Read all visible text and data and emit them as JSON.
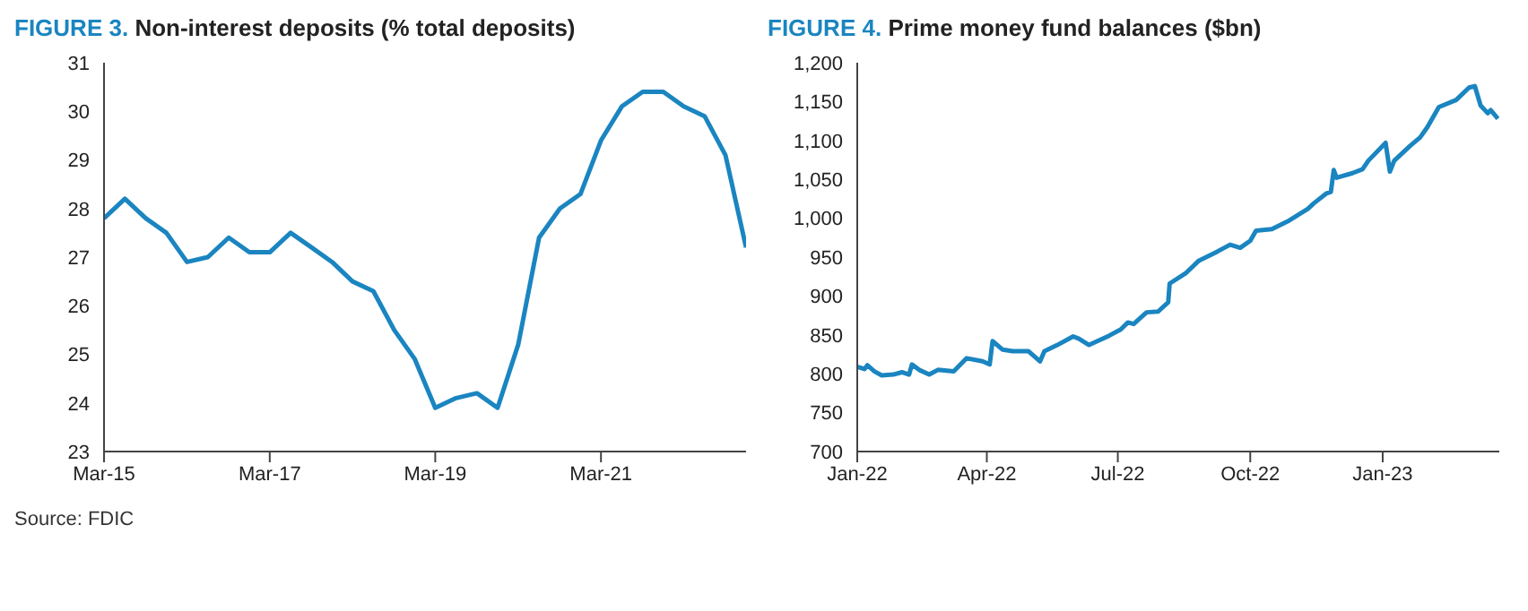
{
  "chart_data": [
    {
      "type": "line",
      "title": "FIGURE 3. Non-interest deposits (% total deposits)",
      "annotations": [
        "Source: FDIC"
      ],
      "x": [
        "2015-03",
        "2015-06",
        "2015-09",
        "2015-12",
        "2016-03",
        "2016-06",
        "2016-09",
        "2016-12",
        "2017-03",
        "2017-06",
        "2017-09",
        "2017-12",
        "2018-03",
        "2018-06",
        "2018-09",
        "2018-12",
        "2019-03",
        "2019-06",
        "2019-09",
        "2019-12",
        "2020-03",
        "2020-06",
        "2020-09",
        "2020-12",
        "2021-03",
        "2021-06",
        "2021-09",
        "2021-12",
        "2022-03",
        "2022-06",
        "2022-09",
        "2022-12"
      ],
      "series": [
        {
          "color": "#1a85c0",
          "values": [
            27.8,
            28.2,
            27.8,
            27.5,
            26.9,
            27.0,
            27.4,
            27.1,
            27.1,
            27.5,
            27.2,
            26.9,
            26.5,
            26.3,
            25.5,
            24.9,
            23.9,
            24.1,
            24.2,
            23.9,
            25.2,
            27.4,
            28.0,
            28.3,
            29.4,
            30.1,
            30.4,
            30.4,
            30.1,
            29.9,
            29.1,
            27.2
          ]
        }
      ],
      "xlim": [
        "2015-03",
        "2022-12"
      ],
      "xticks": [
        {
          "value": "2015-03",
          "label": "Mar-15"
        },
        {
          "value": "2017-03",
          "label": "Mar-17"
        },
        {
          "value": "2019-03",
          "label": "Mar-19"
        },
        {
          "value": "2021-03",
          "label": "Mar-21"
        }
      ],
      "ylim": [
        23,
        31
      ],
      "yticks": [
        23,
        24,
        25,
        26,
        27,
        28,
        29,
        30,
        31
      ],
      "grid": false,
      "legend": false,
      "marker": "none",
      "line_style": "solid"
    },
    {
      "type": "line",
      "title": "FIGURE 4. Prime money fund balances ($bn)",
      "x": [
        "2022-01-01",
        "2022-01-06",
        "2022-01-08",
        "2022-01-13",
        "2022-01-18",
        "2022-01-26",
        "2022-02-01",
        "2022-02-06",
        "2022-02-08",
        "2022-02-13",
        "2022-02-20",
        "2022-02-26",
        "2022-03-09",
        "2022-03-18",
        "2022-03-29",
        "2022-04-03",
        "2022-04-05",
        "2022-04-12",
        "2022-04-19",
        "2022-04-30",
        "2022-05-08",
        "2022-05-11",
        "2022-05-20",
        "2022-05-31",
        "2022-06-04",
        "2022-06-11",
        "2022-06-25",
        "2022-07-03",
        "2022-07-08",
        "2022-07-12",
        "2022-07-21",
        "2022-07-29",
        "2022-08-05",
        "2022-08-06",
        "2022-08-17",
        "2022-08-26",
        "2022-09-08",
        "2022-09-17",
        "2022-09-24",
        "2022-10-01",
        "2022-10-05",
        "2022-10-16",
        "2022-10-28",
        "2022-11-10",
        "2022-11-14",
        "2022-11-23",
        "2022-11-26",
        "2022-11-28",
        "2022-11-30",
        "2022-12-11",
        "2022-12-18",
        "2022-12-22",
        "2023-01-03",
        "2023-01-06",
        "2023-01-09",
        "2023-01-20",
        "2023-01-27",
        "2023-02-01",
        "2023-02-09",
        "2023-02-21",
        "2023-03-02",
        "2023-03-06",
        "2023-03-10",
        "2023-03-15",
        "2023-03-17",
        "2023-03-22"
      ],
      "series": [
        {
          "color": "#1a85c0",
          "values": [
            809,
            806,
            811,
            803,
            798,
            799,
            802,
            799,
            812,
            805,
            799,
            805,
            803,
            820,
            816,
            812,
            842,
            831,
            829,
            829,
            816,
            829,
            837,
            848,
            845,
            837,
            849,
            857,
            866,
            864,
            879,
            880,
            892,
            916,
            929,
            945,
            957,
            966,
            962,
            971,
            984,
            986,
            997,
            1012,
            1019,
            1032,
            1034,
            1062,
            1052,
            1058,
            1063,
            1074,
            1097,
            1060,
            1074,
            1093,
            1104,
            1117,
            1143,
            1152,
            1168,
            1170,
            1145,
            1135,
            1139,
            1128
          ]
        }
      ],
      "xlim": [
        "2022-01-01",
        "2023-03-23"
      ],
      "xticks": [
        {
          "value": "2022-01-01",
          "label": "Jan-22"
        },
        {
          "value": "2022-04-01",
          "label": "Apr-22"
        },
        {
          "value": "2022-07-01",
          "label": "Jul-22"
        },
        {
          "value": "2022-10-01",
          "label": "Oct-22"
        },
        {
          "value": "2023-01-01",
          "label": "Jan-23"
        }
      ],
      "ylim": [
        700,
        1200
      ],
      "yticks": [
        700,
        750,
        800,
        850,
        900,
        950,
        {
          "value": 1000,
          "label": "1,000"
        },
        {
          "value": 1050,
          "label": "1,050"
        },
        {
          "value": 1100,
          "label": "1,100"
        },
        {
          "value": 1150,
          "label": "1,150"
        },
        {
          "value": 1200,
          "label": "1,200"
        }
      ],
      "grid": false,
      "legend": false,
      "marker": "none",
      "line_style": "solid"
    }
  ]
}
